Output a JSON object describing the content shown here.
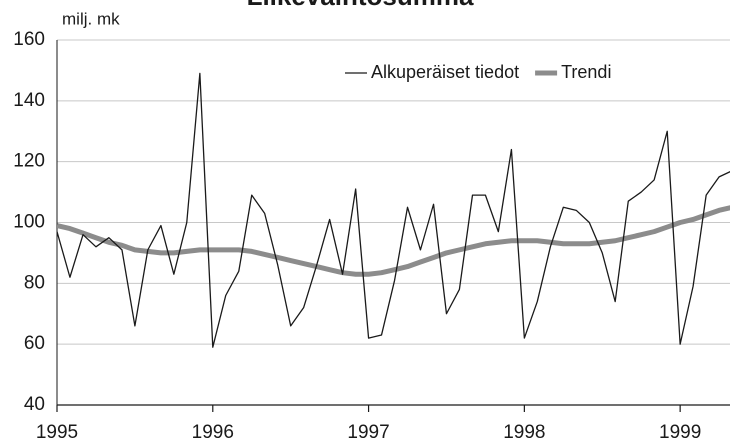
{
  "chart_data": {
    "type": "line",
    "title": "Liikevaihtosumma",
    "y_label": "milj. mk",
    "x": [
      1995,
      1995.083,
      1995.167,
      1995.25,
      1995.333,
      1995.417,
      1995.5,
      1995.583,
      1995.667,
      1995.75,
      1995.833,
      1995.917,
      1996,
      1996.083,
      1996.167,
      1996.25,
      1996.333,
      1996.417,
      1996.5,
      1996.583,
      1996.667,
      1996.75,
      1996.833,
      1996.917,
      1997,
      1997.083,
      1997.167,
      1997.25,
      1997.333,
      1997.417,
      1997.5,
      1997.583,
      1997.667,
      1997.75,
      1997.833,
      1997.917,
      1998,
      1998.083,
      1998.167,
      1998.25,
      1998.333,
      1998.417,
      1998.5,
      1998.583,
      1998.667,
      1998.75,
      1998.833,
      1998.917,
      1999,
      1999.083,
      1999.167,
      1999.25,
      1999.333
    ],
    "series": [
      {
        "name": "Alkuperäiset tiedot",
        "color": "#1a1a1a",
        "width": 1.3,
        "values": [
          97,
          82,
          96,
          92,
          95,
          91,
          66,
          91,
          99,
          83,
          100,
          149,
          59,
          76,
          84,
          109,
          103,
          86,
          66,
          72,
          86,
          101,
          83,
          111,
          62,
          63,
          81,
          105,
          91,
          106,
          70,
          78,
          109,
          109,
          97,
          124,
          62,
          74,
          92,
          105,
          104,
          100,
          90,
          74,
          107,
          110,
          114,
          130,
          60,
          79,
          109,
          115,
          117
        ]
      },
      {
        "name": "Trendi",
        "color": "#8c8c8c",
        "width": 5,
        "values": [
          99,
          98,
          96.5,
          95,
          93.5,
          92.5,
          91,
          90.5,
          90,
          90,
          90.5,
          91,
          91,
          91,
          91,
          90.5,
          89.5,
          88.5,
          87.5,
          86.5,
          85.5,
          84.5,
          83.5,
          83,
          83,
          83.5,
          84.5,
          85.5,
          87,
          88.5,
          90,
          91,
          92,
          93,
          93.5,
          94,
          94,
          94,
          93.5,
          93,
          93,
          93,
          93.5,
          94,
          95,
          96,
          97,
          98.5,
          100,
          101,
          102.5,
          104,
          105
        ]
      }
    ],
    "xlim": [
      1995,
      1999.32
    ],
    "xticks": [
      1995,
      1996,
      1997,
      1998,
      1999
    ],
    "ylim": [
      40,
      160
    ],
    "yticks": [
      40,
      60,
      80,
      100,
      120,
      140,
      160
    ],
    "grid": true,
    "legend": "top-right"
  }
}
